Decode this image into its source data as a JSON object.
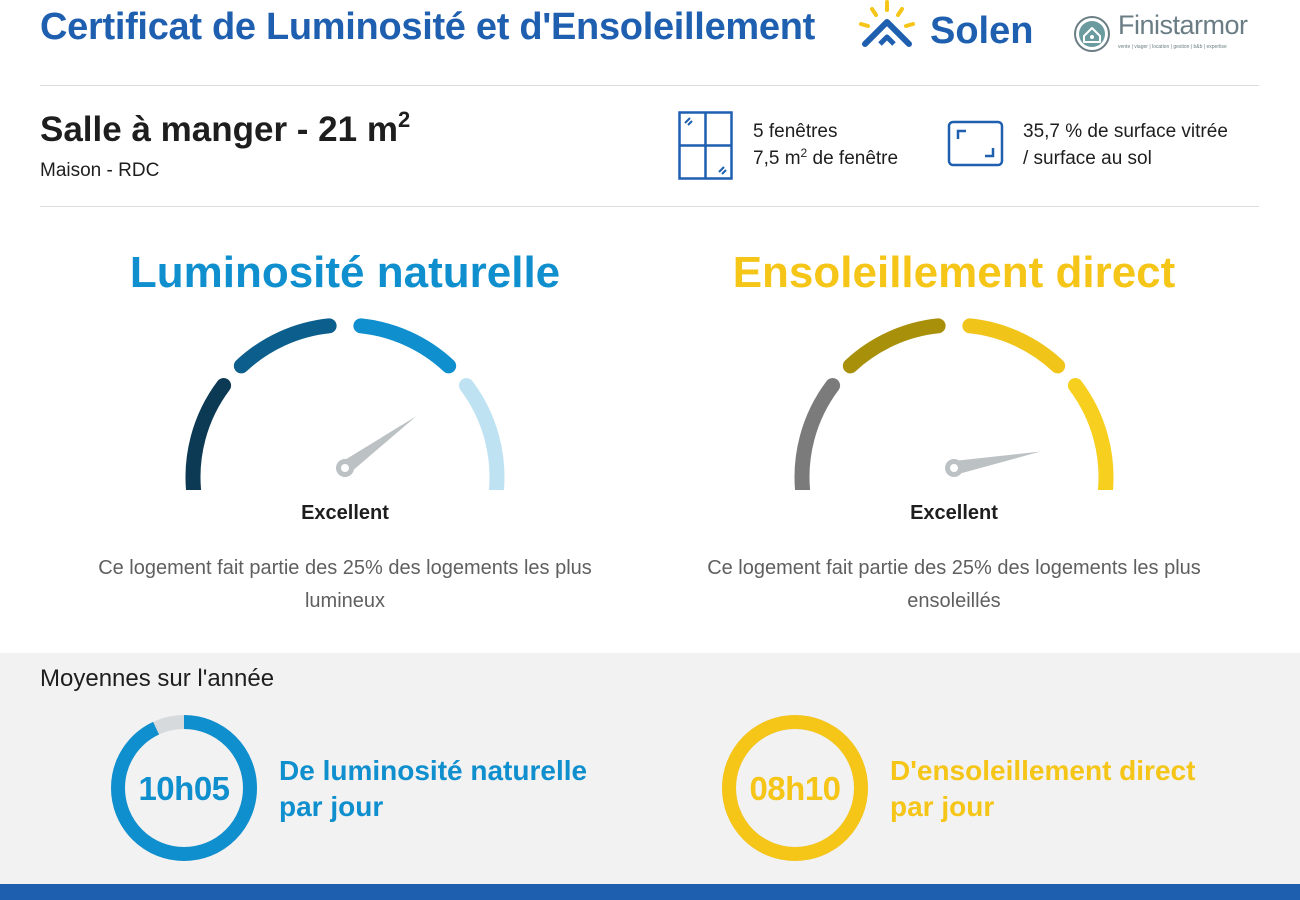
{
  "header": {
    "title": "Certificat de Luminosité et d'Ensoleillement",
    "solen_logo": "Solen",
    "finist_logo": "Finistarmor",
    "finist_tagline": "vente | viager | location | gestion | b&b | expertise"
  },
  "room": {
    "title": "Salle à manger - 21 m",
    "title_sup": "2",
    "subtitle": "Maison - RDC",
    "windows_count": "5 fenêtres",
    "windows_area_prefix": "7,5 m",
    "windows_area_sup": "2",
    "windows_area_suffix": " de fenêtre",
    "glazing_line1": "35,7 % de surface vitrée",
    "glazing_line2": "/ surface au sol"
  },
  "luminosity": {
    "title": "Luminosité naturelle",
    "rating": "Excellent",
    "description": "Ce logement fait partie des 25% des logements les plus lumineux",
    "color": "#0f8fce",
    "segment_colors": [
      "#0c3954",
      "#0c5f8c",
      "#0f8fce",
      "#bfe2f3"
    ],
    "needle_level": 0.8
  },
  "sunshine": {
    "title": "Ensoleillement direct",
    "rating": "Excellent",
    "description": "Ce logement fait partie des 25% des logements les plus ensoleillés",
    "color": "#f5c518",
    "segment_colors": [
      "#7b7b7b",
      "#a8900a",
      "#f0c419",
      "#f7cf1e"
    ],
    "needle_level": 0.94
  },
  "averages": {
    "title": "Moyennes sur l'année",
    "luminosity_value": "10h05",
    "luminosity_label_line1": "De luminosité naturelle",
    "luminosity_label_line2": "par jour",
    "luminosity_fraction": 0.93,
    "sunshine_value": "08h10",
    "sunshine_label_line1": "D'ensoleillement direct",
    "sunshine_label_line2": "par jour",
    "sunshine_fraction": 1.0
  },
  "icons": {
    "sun": "sun-house-icon",
    "finist": "house-circle-icon",
    "window": "window-icon",
    "surface": "floor-surface-icon"
  }
}
